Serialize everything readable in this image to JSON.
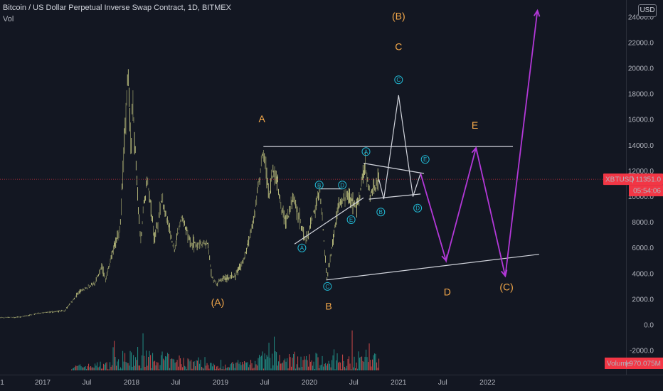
{
  "header": {
    "title": "Bitcoin / US Dollar Perpetual Inverse Swap Contract, 1D, BITMEX",
    "volume_label": "Vol"
  },
  "currency_button": "USD",
  "price_axis": {
    "ticks": [
      "24000.0",
      "22000.0",
      "20000.0",
      "18000.0",
      "16000.0",
      "14000.0",
      "12000.0",
      "10000.0",
      "8000.0",
      "6000.0",
      "4000.0",
      "2000.0",
      "0.0",
      "-2000.0"
    ]
  },
  "time_axis": {
    "ticks": [
      "1",
      "2017",
      "Jul",
      "2018",
      "Jul",
      "2019",
      "Jul",
      "2020",
      "Jul",
      "2021",
      "Jul",
      "2022"
    ]
  },
  "price_badge": {
    "symbol": "XBTUSD",
    "price": "11351.0",
    "countdown": "05:54:06",
    "color": "#f23645"
  },
  "volume_badge": {
    "label": "Volume",
    "value": "970.075M",
    "color": "#f23645"
  },
  "colors": {
    "background": "#131722",
    "up": "#d6d98c",
    "down": "#8a8d60",
    "vol_up": "#26a69a",
    "vol_down": "#ef5350",
    "projection": "#b338d8",
    "white_lines": "#d1d4dc",
    "label_orange": "#f5a94a",
    "label_cyan": "#21b8d3"
  },
  "chart_data": {
    "type": "line",
    "title": "Bitcoin / US Dollar Perpetual Inverse Swap Contract, 1D, BITMEX",
    "xlabel": "",
    "ylabel": "",
    "ylim": [
      -2000,
      24000
    ],
    "grid": false,
    "price_path": [
      {
        "x": "2016-06-01",
        "y": 550
      },
      {
        "x": "2016-10-01",
        "y": 610
      },
      {
        "x": "2017-01-01",
        "y": 950
      },
      {
        "x": "2017-04-01",
        "y": 1100
      },
      {
        "x": "2017-06-01",
        "y": 2600
      },
      {
        "x": "2017-08-01",
        "y": 3200
      },
      {
        "x": "2017-09-01",
        "y": 4600
      },
      {
        "x": "2017-09-15",
        "y": 3500
      },
      {
        "x": "2017-10-20",
        "y": 6000
      },
      {
        "x": "2017-11-15",
        "y": 7500
      },
      {
        "x": "2017-12-17",
        "y": 20000
      },
      {
        "x": "2017-12-30",
        "y": 13500
      },
      {
        "x": "2018-01-06",
        "y": 17200
      },
      {
        "x": "2018-02-06",
        "y": 6500
      },
      {
        "x": "2018-03-05",
        "y": 11500
      },
      {
        "x": "2018-04-06",
        "y": 6600
      },
      {
        "x": "2018-05-05",
        "y": 9900
      },
      {
        "x": "2018-06-25",
        "y": 5800
      },
      {
        "x": "2018-07-25",
        "y": 8400
      },
      {
        "x": "2018-09-01",
        "y": 6300
      },
      {
        "x": "2018-11-10",
        "y": 6400
      },
      {
        "x": "2018-11-25",
        "y": 3800
      },
      {
        "x": "2018-12-15",
        "y": 3200
      },
      {
        "x": "2019-01-10",
        "y": 3600
      },
      {
        "x": "2019-03-01",
        "y": 3800
      },
      {
        "x": "2019-04-05",
        "y": 5000
      },
      {
        "x": "2019-05-15",
        "y": 8000
      },
      {
        "x": "2019-06-26",
        "y": 13800
      },
      {
        "x": "2019-07-20",
        "y": 10000
      },
      {
        "x": "2019-08-06",
        "y": 12000
      },
      {
        "x": "2019-09-25",
        "y": 8000
      },
      {
        "x": "2019-10-26",
        "y": 10000
      },
      {
        "x": "2019-12-18",
        "y": 6500
      },
      {
        "x": "2020-02-13",
        "y": 10500
      },
      {
        "x": "2020-03-13",
        "y": 3600
      },
      {
        "x": "2020-04-30",
        "y": 9400
      },
      {
        "x": "2020-06-01",
        "y": 10200
      },
      {
        "x": "2020-07-15",
        "y": 9200
      },
      {
        "x": "2020-08-17",
        "y": 12400
      },
      {
        "x": "2020-09-08",
        "y": 10000
      },
      {
        "x": "2020-10-01",
        "y": 10800
      },
      {
        "x": "2020-10-12",
        "y": 11351
      }
    ],
    "projection_lines": [
      {
        "name": "",
        "points": [
          {
            "x": "2020-10-12",
            "y": 11351
          },
          {
            "x": "2020-11-01",
            "y": 9800
          },
          {
            "x": "2021-01-01",
            "y": 17900
          },
          {
            "x": "2021-03-01",
            "y": 10000
          },
          {
            "x": "2021-04-01",
            "y": 11800
          }
        ]
      },
      {
        "name": "",
        "points": [
          {
            "x": "2021-04-01",
            "y": 11800
          },
          {
            "x": "2021-07-15",
            "y": 5000
          },
          {
            "x": "2021-11-15",
            "y": 13800
          },
          {
            "x": "2022-03-15",
            "y": 3800
          },
          {
            "x": "2022-07-25",
            "y": 24500
          }
        ]
      }
    ],
    "trendlines": [
      {
        "from": {
          "x": "2019-06-26",
          "y": 13900
        },
        "to": {
          "x": "2022-04-15",
          "y": 13900
        }
      },
      {
        "from": {
          "x": "2020-03-10",
          "y": 3500
        },
        "to": {
          "x": "2022-08-01",
          "y": 5500
        }
      },
      {
        "from": {
          "x": "2019-11-01",
          "y": 6300
        },
        "to": {
          "x": "2020-08-10",
          "y": 9900
        }
      },
      {
        "from": {
          "x": "2020-08-10",
          "y": 12600
        },
        "to": {
          "x": "2021-04-15",
          "y": 11800
        }
      },
      {
        "from": {
          "x": "2020-09-01",
          "y": 9800
        },
        "to": {
          "x": "2021-04-01",
          "y": 10200
        }
      },
      {
        "from": {
          "x": "2020-02-15",
          "y": 10600
        },
        "to": {
          "x": "2020-05-15",
          "y": 10600
        }
      }
    ],
    "wave_labels": [
      {
        "text": "A",
        "x": "2019-06-20",
        "y": 15800,
        "color": "orange"
      },
      {
        "text": "(A)",
        "x": "2018-12-20",
        "y": 1500,
        "color": "orange"
      },
      {
        "text": "B",
        "x": "2020-03-20",
        "y": 1200,
        "color": "orange"
      },
      {
        "text": "(B)",
        "x": "2021-01-01",
        "y": 23800,
        "color": "orange"
      },
      {
        "text": "C",
        "x": "2021-01-01",
        "y": 21400,
        "color": "orange"
      },
      {
        "text": "D",
        "x": "2021-07-20",
        "y": 2300,
        "color": "orange"
      },
      {
        "text": "E",
        "x": "2021-11-10",
        "y": 15300,
        "color": "orange"
      },
      {
        "text": "(C)",
        "x": "2022-03-20",
        "y": 2700,
        "color": "orange"
      }
    ],
    "circled_labels": [
      {
        "text": "A",
        "x": "2019-12-01",
        "y": 6000
      },
      {
        "text": "B",
        "x": "2020-02-10",
        "y": 10900
      },
      {
        "text": "C",
        "x": "2020-03-15",
        "y": 3000
      },
      {
        "text": "D",
        "x": "2020-05-15",
        "y": 10900
      },
      {
        "text": "E",
        "x": "2020-06-20",
        "y": 8200
      },
      {
        "text": "A",
        "x": "2020-08-20",
        "y": 13500
      },
      {
        "text": "B",
        "x": "2020-10-20",
        "y": 8800
      },
      {
        "text": "C",
        "x": "2021-01-01",
        "y": 19100
      },
      {
        "text": "D",
        "x": "2021-03-20",
        "y": 9100
      },
      {
        "text": "E",
        "x": "2021-04-20",
        "y": 12900
      }
    ]
  }
}
